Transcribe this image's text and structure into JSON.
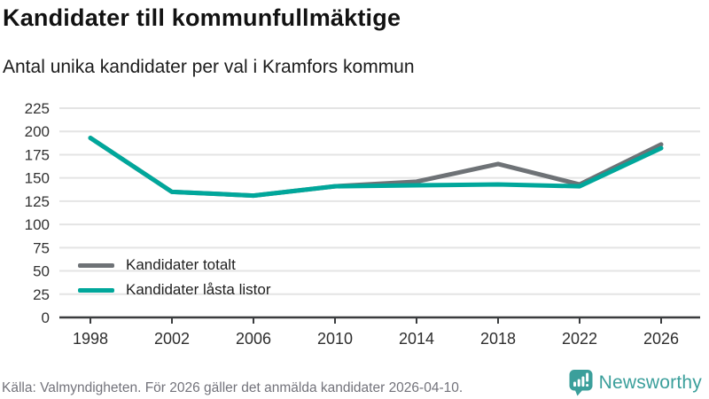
{
  "header": {
    "title": "Kandidater till kommunfullmäktige",
    "subtitle": "Antal unika kandidater per val i Kramfors kommun"
  },
  "chart_data": {
    "type": "line",
    "x": [
      1998,
      2002,
      2006,
      2010,
      2014,
      2018,
      2022,
      2026
    ],
    "series": [
      {
        "name": "Kandidater totalt",
        "color": "#6e7276",
        "values": [
          193,
          135,
          131,
          141,
          146,
          165,
          143,
          186
        ]
      },
      {
        "name": "Kandidater låsta listor",
        "color": "#00a79b",
        "values": [
          193,
          135,
          131,
          141,
          142,
          143,
          141,
          182
        ]
      }
    ],
    "ylim": [
      0,
      225
    ],
    "ytick_step": 25,
    "grid": "horizontal",
    "grid_color": "#e4e4e4",
    "axis_color": "#3a3c3e",
    "tick_label_color": "#333333",
    "legend_position": "inside-bottom-left"
  },
  "footer": {
    "source": "Källa: Valmyndigheten. För 2026 gäller det anmälda kandidater 2026-04-10.",
    "brand": "Newsworthy",
    "brand_color": "#3b9f9b"
  }
}
